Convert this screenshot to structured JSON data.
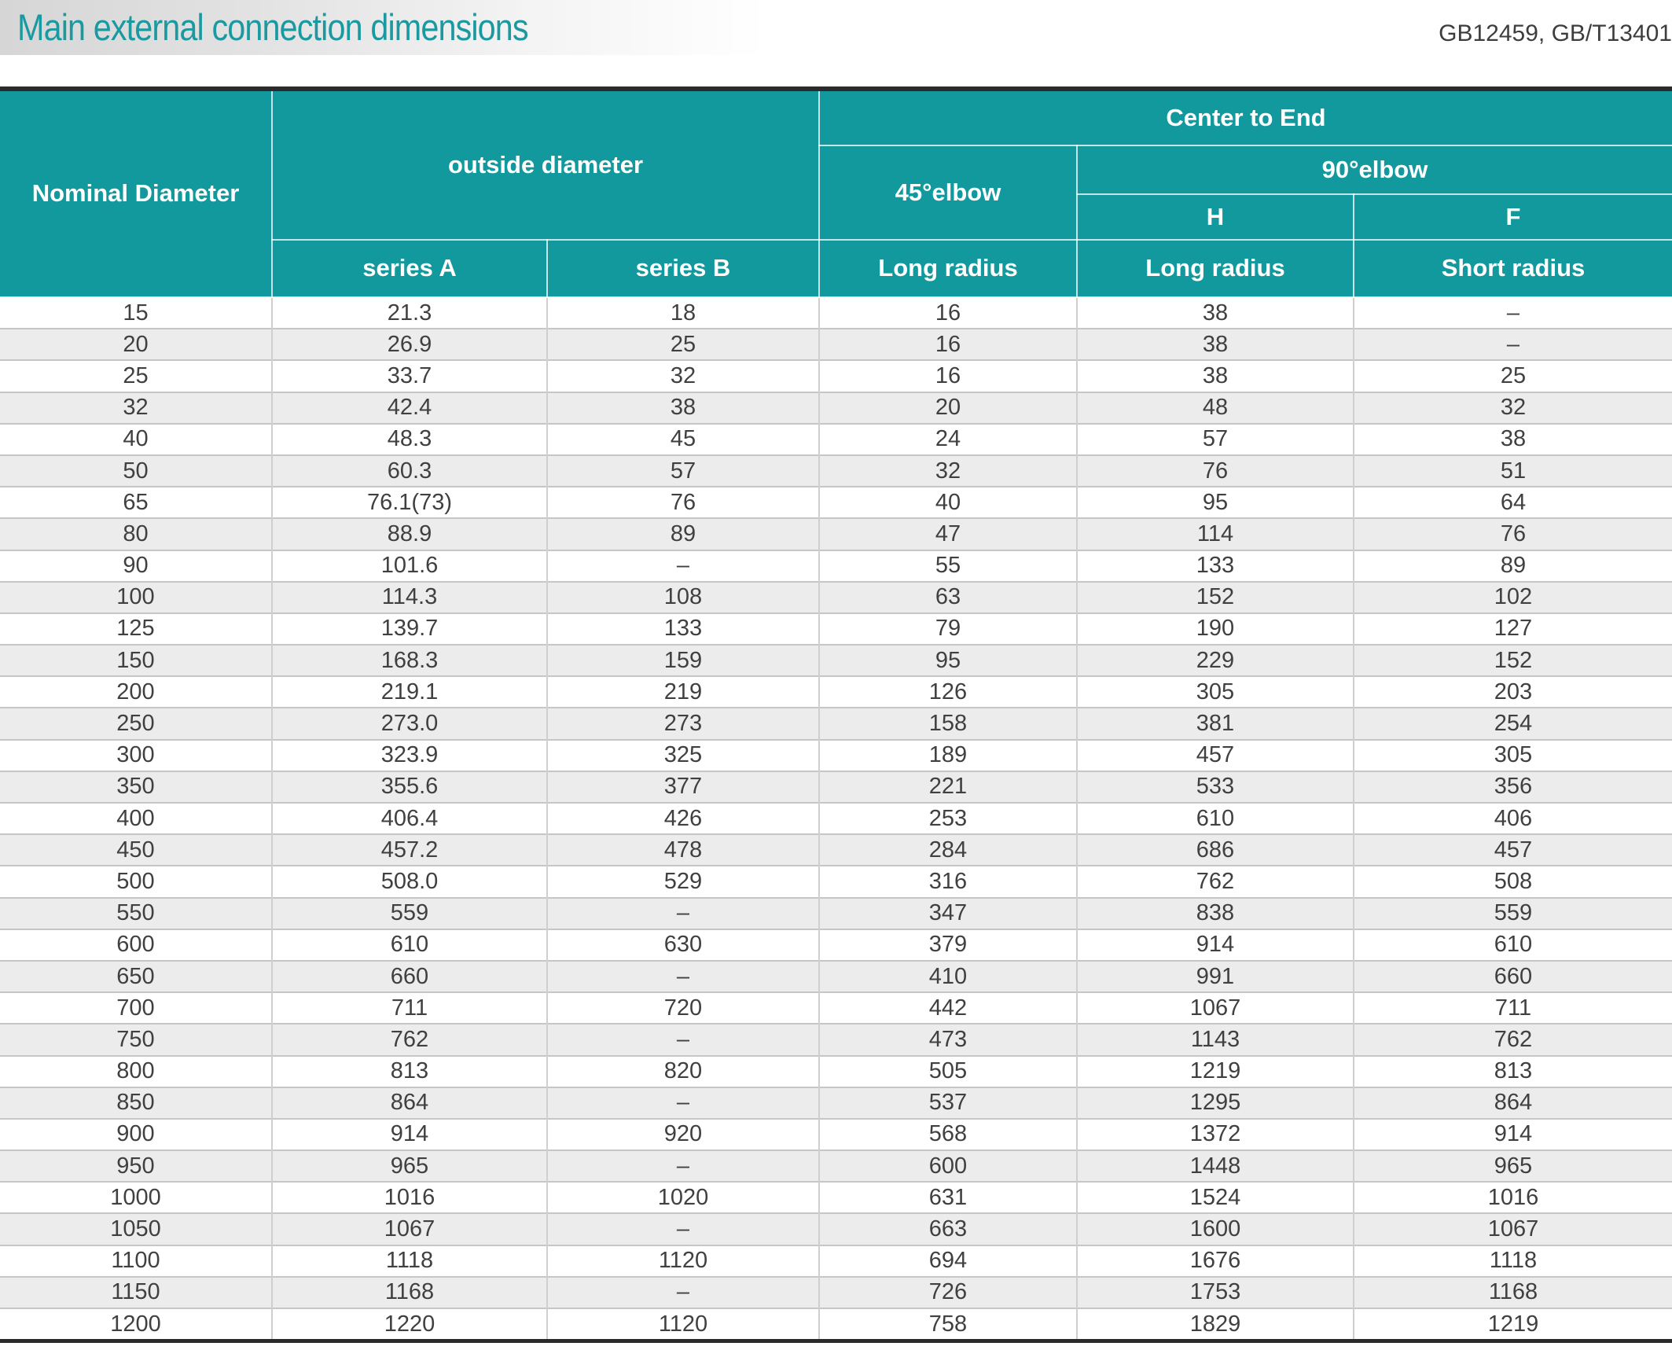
{
  "title": "Main external connection dimensions",
  "standards": "GB12459, GB/T13401",
  "table": {
    "header": {
      "nominal_diameter": "Nominal Diameter",
      "outside_diameter": "outside diameter",
      "center_to_end": "Center to End",
      "elbow_45": "45°elbow",
      "elbow_90": "90°elbow",
      "h": "H",
      "f": "F",
      "series_a": "series A",
      "series_b": "series B",
      "long_radius_45": "Long radius",
      "long_radius_h": "Long radius",
      "short_radius_f": "Short radius"
    },
    "rows": [
      [
        "15",
        "21.3",
        "18",
        "16",
        "38",
        "–"
      ],
      [
        "20",
        "26.9",
        "25",
        "16",
        "38",
        "–"
      ],
      [
        "25",
        "33.7",
        "32",
        "16",
        "38",
        "25"
      ],
      [
        "32",
        "42.4",
        "38",
        "20",
        "48",
        "32"
      ],
      [
        "40",
        "48.3",
        "45",
        "24",
        "57",
        "38"
      ],
      [
        "50",
        "60.3",
        "57",
        "32",
        "76",
        "51"
      ],
      [
        "65",
        "76.1(73)",
        "76",
        "40",
        "95",
        "64"
      ],
      [
        "80",
        "88.9",
        "89",
        "47",
        "114",
        "76"
      ],
      [
        "90",
        "101.6",
        "–",
        "55",
        "133",
        "89"
      ],
      [
        "100",
        "114.3",
        "108",
        "63",
        "152",
        "102"
      ],
      [
        "125",
        "139.7",
        "133",
        "79",
        "190",
        "127"
      ],
      [
        "150",
        "168.3",
        "159",
        "95",
        "229",
        "152"
      ],
      [
        "200",
        "219.1",
        "219",
        "126",
        "305",
        "203"
      ],
      [
        "250",
        "273.0",
        "273",
        "158",
        "381",
        "254"
      ],
      [
        "300",
        "323.9",
        "325",
        "189",
        "457",
        "305"
      ],
      [
        "350",
        "355.6",
        "377",
        "221",
        "533",
        "356"
      ],
      [
        "400",
        "406.4",
        "426",
        "253",
        "610",
        "406"
      ],
      [
        "450",
        "457.2",
        "478",
        "284",
        "686",
        "457"
      ],
      [
        "500",
        "508.0",
        "529",
        "316",
        "762",
        "508"
      ],
      [
        "550",
        "559",
        "–",
        "347",
        "838",
        "559"
      ],
      [
        "600",
        "610",
        "630",
        "379",
        "914",
        "610"
      ],
      [
        "650",
        "660",
        "–",
        "410",
        "991",
        "660"
      ],
      [
        "700",
        "711",
        "720",
        "442",
        "1067",
        "711"
      ],
      [
        "750",
        "762",
        "–",
        "473",
        "1143",
        "762"
      ],
      [
        "800",
        "813",
        "820",
        "505",
        "1219",
        "813"
      ],
      [
        "850",
        "864",
        "–",
        "537",
        "1295",
        "864"
      ],
      [
        "900",
        "914",
        "920",
        "568",
        "1372",
        "914"
      ],
      [
        "950",
        "965",
        "–",
        "600",
        "1448",
        "965"
      ],
      [
        "1000",
        "1016",
        "1020",
        "631",
        "1524",
        "1016"
      ],
      [
        "1050",
        "1067",
        "–",
        "663",
        "1600",
        "1067"
      ],
      [
        "1100",
        "1118",
        "1120",
        "694",
        "1676",
        "1118"
      ],
      [
        "1150",
        "1168",
        "–",
        "726",
        "1753",
        "1168"
      ],
      [
        "1200",
        "1220",
        "1120",
        "758",
        "1829",
        "1219"
      ]
    ]
  },
  "colors": {
    "header_teal": "#12999e",
    "title_teal": "#1a9aa0",
    "dark_border": "#2b2b2b",
    "row_stripe": "#ececec",
    "body_text": "#404040"
  }
}
